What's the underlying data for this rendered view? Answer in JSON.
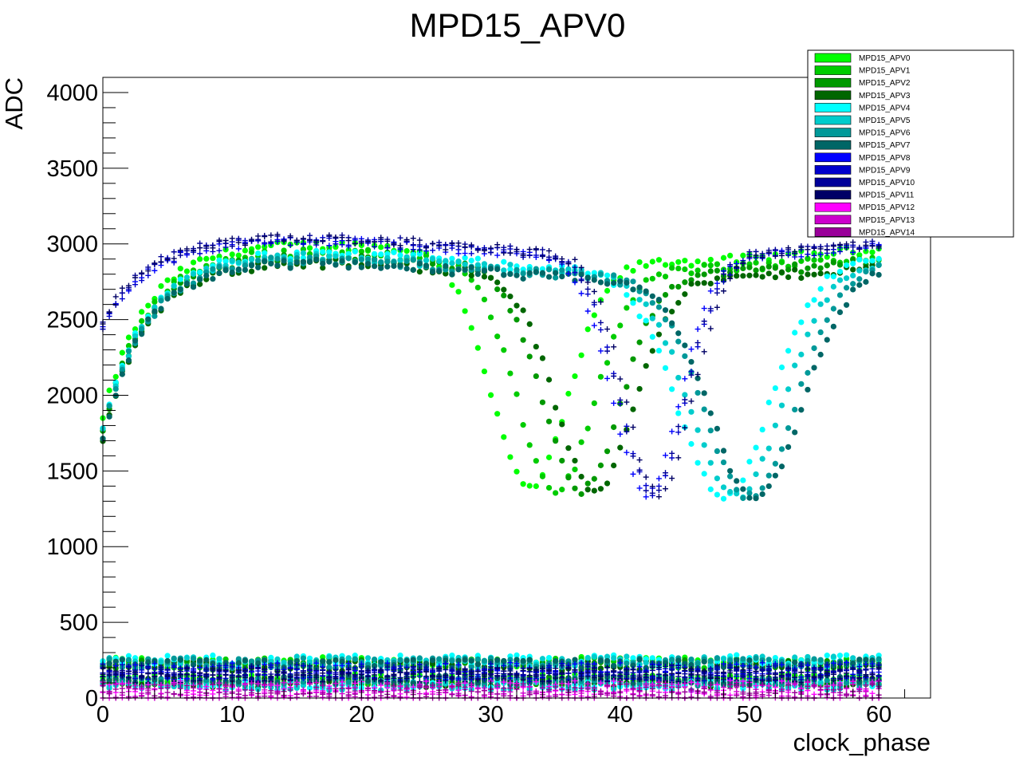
{
  "chart_data": {
    "type": "scatter",
    "title": "MPD15_APV0",
    "xlabel": "clock_phase",
    "ylabel": "ADC",
    "xlim": [
      0,
      64
    ],
    "ylim": [
      0,
      4100
    ],
    "xticks": [
      0,
      10,
      20,
      30,
      40,
      50,
      60
    ],
    "yticks": [
      0,
      500,
      1000,
      1500,
      2000,
      2500,
      3000,
      3500,
      4000
    ],
    "legend_position": "top-right",
    "grid": false,
    "series": [
      {
        "name": "MPD15_APV0",
        "color": "#00ff00",
        "marker": "circle",
        "y0": 2940,
        "dip_x": 33,
        "dip_depth": 1520,
        "dip_w": 4.2,
        "noise_hi": 240,
        "noise_lo": 130
      },
      {
        "name": "MPD15_APV1",
        "color": "#00cc00",
        "marker": "circle",
        "y0": 2890,
        "dip_x": 35,
        "dip_depth": 1480,
        "dip_w": 4.2,
        "noise_hi": 230,
        "noise_lo": 120
      },
      {
        "name": "MPD15_APV2",
        "color": "#009900",
        "marker": "circle",
        "y0": 2860,
        "dip_x": 37,
        "dip_depth": 1440,
        "dip_w": 4.2,
        "noise_hi": 220,
        "noise_lo": 110
      },
      {
        "name": "MPD15_APV3",
        "color": "#006600",
        "marker": "circle",
        "y0": 2820,
        "dip_x": 38,
        "dip_depth": 1400,
        "dip_w": 4.2,
        "noise_hi": 210,
        "noise_lo": 100
      },
      {
        "name": "MPD15_APV4",
        "color": "#00ffff",
        "marker": "circle",
        "y0": 2880,
        "dip_x": 48,
        "dip_depth": 1500,
        "dip_w": 5.0,
        "noise_hi": 250,
        "noise_lo": 90
      },
      {
        "name": "MPD15_APV5",
        "color": "#00cccc",
        "marker": "circle",
        "y0": 2860,
        "dip_x": 49,
        "dip_depth": 1480,
        "dip_w": 5.0,
        "noise_hi": 240,
        "noise_lo": 80
      },
      {
        "name": "MPD15_APV6",
        "color": "#009999",
        "marker": "circle",
        "y0": 2840,
        "dip_x": 50,
        "dip_depth": 1470,
        "dip_w": 5.0,
        "noise_hi": 230,
        "noise_lo": 110
      },
      {
        "name": "MPD15_APV7",
        "color": "#006666",
        "marker": "circle",
        "y0": 2820,
        "dip_x": 50.5,
        "dip_depth": 1460,
        "dip_w": 5.0,
        "noise_hi": 220,
        "noise_lo": 120
      },
      {
        "name": "MPD15_APV8",
        "color": "#0000ff",
        "marker": "cross",
        "y0": 2960,
        "dip_x": 42,
        "dip_depth": 1550,
        "dip_w": 3.6,
        "noise_hi": 200,
        "noise_lo": 150
      },
      {
        "name": "MPD15_APV9",
        "color": "#0000cc",
        "marker": "cross",
        "y0": 2960,
        "dip_x": 42.5,
        "dip_depth": 1540,
        "dip_w": 3.6,
        "noise_hi": 190,
        "noise_lo": 140
      },
      {
        "name": "MPD15_APV10",
        "color": "#000099",
        "marker": "cross",
        "y0": 2980,
        "dip_x": 42.5,
        "dip_depth": 1560,
        "dip_w": 3.6,
        "noise_hi": 180,
        "noise_lo": 160
      },
      {
        "name": "MPD15_APV11",
        "color": "#000066",
        "marker": "cross",
        "y0": 2980,
        "dip_x": 43,
        "dip_depth": 1580,
        "dip_w": 3.6,
        "noise_hi": 170,
        "noise_lo": 130
      },
      {
        "name": "MPD15_APV12",
        "color": "#ff00ff",
        "marker": "cross",
        "y0": 60,
        "noise_hi": 80,
        "noise_lo": 20
      },
      {
        "name": "MPD15_APV13",
        "color": "#cc00cc",
        "marker": "cross",
        "y0": 50,
        "noise_hi": 70,
        "noise_lo": 15
      },
      {
        "name": "MPD15_APV14",
        "color": "#990099",
        "marker": "cross",
        "y0": 40,
        "noise_hi": 60,
        "noise_lo": 10
      }
    ]
  }
}
